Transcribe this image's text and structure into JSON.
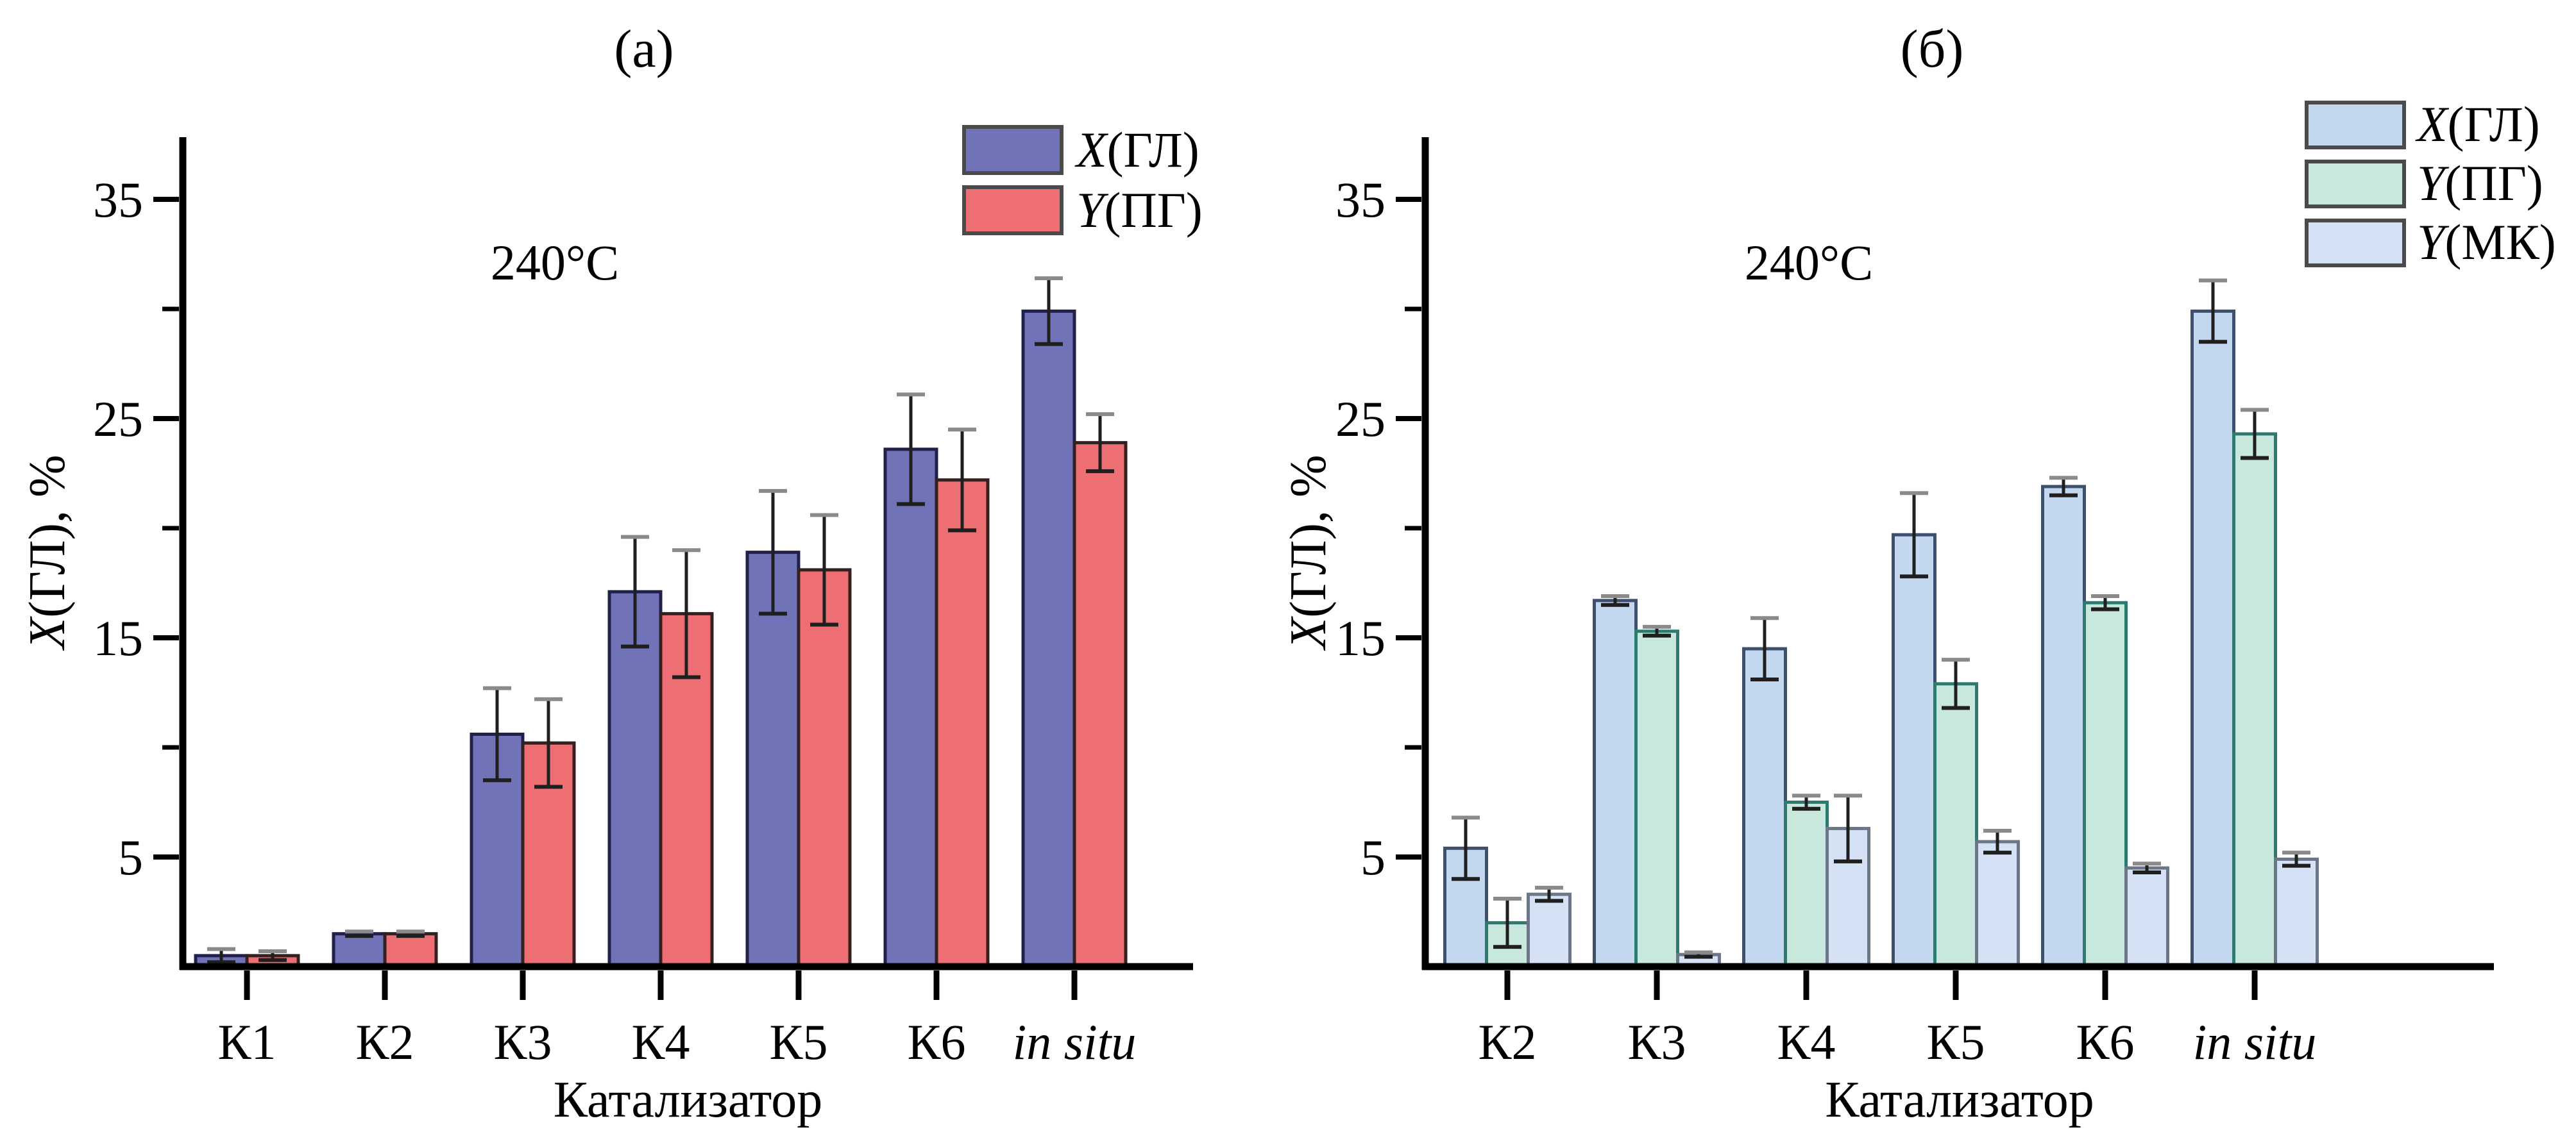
{
  "figure_type": "two-panel bar chart, catalyst screening at 240°C",
  "chart_data": [
    {
      "type": "bar",
      "panel_label": "(а)",
      "annotation": "240°C",
      "xlabel": "Катализатор",
      "ylabel": "X(ГЛ), %",
      "ylim": [
        0,
        37.8
      ],
      "yticks": [
        5,
        15,
        25,
        35
      ],
      "minor_yticks": [
        10,
        20,
        30
      ],
      "grid": false,
      "legend_position": "top-right-inside",
      "categories": [
        "К1",
        "К2",
        "К3",
        "К4",
        "К5",
        "К6",
        "in situ"
      ],
      "italic_categories": [
        "in situ"
      ],
      "series": [
        {
          "name": "X(ГЛ)",
          "fill": "#7173b9",
          "border": "#20204a",
          "values": [
            0.5,
            1.5,
            10.6,
            17.1,
            18.9,
            23.6,
            29.9
          ],
          "errors": [
            0.3,
            0.1,
            2.1,
            2.5,
            2.8,
            2.5,
            1.5
          ]
        },
        {
          "name": "Y(ПГ)",
          "fill": "#ee6f73",
          "border": "#33201f",
          "values": [
            0.5,
            1.5,
            10.2,
            16.1,
            18.1,
            22.2,
            23.9
          ],
          "errors": [
            0.2,
            0.1,
            2.0,
            2.9,
            2.5,
            2.3,
            1.3
          ]
        }
      ]
    },
    {
      "type": "bar",
      "panel_label": "(б)",
      "annotation": "240°C",
      "xlabel": "Катализатор",
      "ylabel": "X(ГЛ), %",
      "ylim": [
        0,
        37.8
      ],
      "yticks": [
        5,
        15,
        25,
        35
      ],
      "minor_yticks": [
        10,
        20,
        30
      ],
      "grid": false,
      "legend_position": "top-right-outside",
      "categories": [
        "К2",
        "К3",
        "К4",
        "К5",
        "К6",
        "in situ"
      ],
      "italic_categories": [
        "in situ"
      ],
      "series": [
        {
          "name": "X(ГЛ)",
          "fill": "#c3d7ee",
          "border": "#3f4f6e",
          "values": [
            5.4,
            16.7,
            14.5,
            19.7,
            21.9,
            29.9
          ],
          "errors": [
            1.4,
            0.2,
            1.4,
            1.9,
            0.4,
            1.4
          ]
        },
        {
          "name": "Y(ПГ)",
          "fill": "#c8e8de",
          "border": "#2f7a70",
          "values": [
            2.0,
            15.3,
            7.5,
            12.9,
            16.6,
            24.3
          ],
          "errors": [
            1.1,
            0.2,
            0.3,
            1.1,
            0.3,
            1.1
          ]
        },
        {
          "name": "Y(МК)",
          "fill": "#d5e1f4",
          "border": "#6b7687",
          "values": [
            3.3,
            0.55,
            6.3,
            5.7,
            4.5,
            4.9
          ],
          "errors": [
            0.3,
            0.1,
            1.5,
            0.5,
            0.2,
            0.3
          ]
        }
      ]
    }
  ],
  "style": {
    "axis_color": "#000000",
    "errorbar_color": "#1f1f1f",
    "errorbar_cap_color": "#8a8a8a",
    "text_color": "#000000"
  }
}
